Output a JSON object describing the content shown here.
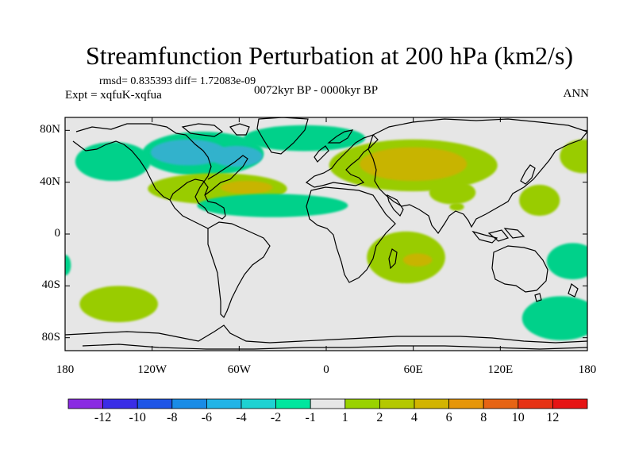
{
  "header": {
    "title": "Streamfunction Perturbation at 200 hPa (km2/s)",
    "stats": "rmsd= 0.835393 diff= 1.72083e-09",
    "experiment": "Expt = xqfuK-xqfua",
    "period": "0072kyr BP - 0000kyr BP",
    "season": "ANN"
  },
  "map": {
    "projection": "cylindrical equidistant",
    "lon_range": [
      -180,
      180
    ],
    "lat_range": [
      -90,
      90
    ],
    "x_ticks": [
      {
        "lon": -180,
        "label": "180"
      },
      {
        "lon": -120,
        "label": "120W"
      },
      {
        "lon": -60,
        "label": "60W"
      },
      {
        "lon": 0,
        "label": "0"
      },
      {
        "lon": 60,
        "label": "60E"
      },
      {
        "lon": 120,
        "label": "120E"
      },
      {
        "lon": 180,
        "label": "180"
      }
    ],
    "y_ticks": [
      {
        "lat": 80,
        "label": "80N"
      },
      {
        "lat": 40,
        "label": "40N"
      },
      {
        "lat": 0,
        "label": "0"
      },
      {
        "lat": -40,
        "label": "40S"
      },
      {
        "lat": -80,
        "label": "80S"
      }
    ],
    "background_color": "#e6e6e6",
    "anomaly_regions": [
      {
        "lon": -147,
        "lat": 56,
        "rlon": 26,
        "rlat": 15,
        "color": "#00d18a"
      },
      {
        "lon": -85,
        "lat": 62,
        "rlon": 42,
        "rlat": 17,
        "color": "#00d18a"
      },
      {
        "lon": -15,
        "lat": 74,
        "rlon": 42,
        "rlat": 10,
        "color": "#00d18a"
      },
      {
        "lon": -95,
        "lat": 63,
        "rlon": 26,
        "rlat": 10,
        "color": "#33b2cc"
      },
      {
        "lon": -62,
        "lat": 60,
        "rlon": 18,
        "rlat": 8,
        "color": "#33b2cc"
      },
      {
        "lon": -75,
        "lat": 35,
        "rlon": 48,
        "rlat": 12,
        "color": "#99cc00"
      },
      {
        "lon": -55,
        "lat": 36,
        "rlon": 18,
        "rlat": 5,
        "color": "#c8b400"
      },
      {
        "lon": -37,
        "lat": 22,
        "rlon": 52,
        "rlat": 9,
        "color": "#00d18a"
      },
      {
        "lon": 60,
        "lat": 53,
        "rlon": 58,
        "rlat": 20,
        "color": "#99cc00"
      },
      {
        "lon": 60,
        "lat": 54,
        "rlon": 37,
        "rlat": 13,
        "color": "#c8b400"
      },
      {
        "lon": 87,
        "lat": 32,
        "rlon": 16,
        "rlat": 9,
        "color": "#99cc00"
      },
      {
        "lon": 177,
        "lat": 60,
        "rlon": 16,
        "rlat": 13,
        "color": "#99cc00"
      },
      {
        "lon": 147,
        "lat": 26,
        "rlon": 14,
        "rlat": 12,
        "color": "#99cc00"
      },
      {
        "lon": 55,
        "lat": -18,
        "rlon": 27,
        "rlat": 20,
        "color": "#99cc00"
      },
      {
        "lon": 63,
        "lat": -20,
        "rlon": 10,
        "rlat": 5,
        "color": "#c8b400"
      },
      {
        "lon": 90,
        "lat": 21,
        "rlon": 5,
        "rlat": 3,
        "color": "#99cc00"
      },
      {
        "lon": -143,
        "lat": -54,
        "rlon": 27,
        "rlat": 14,
        "color": "#99cc00"
      },
      {
        "lon": 162,
        "lat": -65,
        "rlon": 27,
        "rlat": 17,
        "color": "#00d18a"
      },
      {
        "lon": 170,
        "lat": -21,
        "rlon": 18,
        "rlat": 14,
        "color": "#00d18a"
      },
      {
        "lon": -180,
        "lat": -24,
        "rlon": 4,
        "rlat": 8,
        "color": "#00d18a"
      }
    ],
    "coastline_color": "#000000"
  },
  "colorbar": {
    "labels": [
      "-12",
      "-10",
      "-8",
      "-6",
      "-4",
      "-2",
      "-1",
      "1",
      "2",
      "4",
      "6",
      "8",
      "10",
      "12"
    ],
    "colors": [
      "#8a2be2",
      "#3a2de6",
      "#1e55e6",
      "#1a8ce6",
      "#22b4e6",
      "#1ed2d2",
      "#00e69e",
      "#e6e6e6",
      "#99d200",
      "#b4c800",
      "#d2b400",
      "#e6960a",
      "#e66414",
      "#e63214",
      "#e61414"
    ]
  }
}
